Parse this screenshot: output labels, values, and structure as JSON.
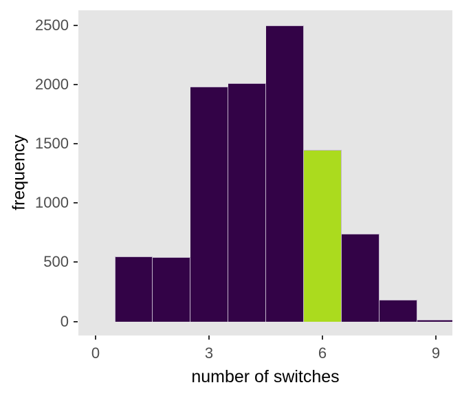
{
  "chart_data": {
    "type": "bar",
    "subtype": "histogram",
    "title": "",
    "xlabel": "number of switches",
    "ylabel": "frequency",
    "categories": [
      1,
      2,
      3,
      4,
      5,
      6,
      7,
      8,
      9
    ],
    "values": [
      550,
      540,
      1980,
      2010,
      2500,
      1450,
      740,
      185,
      15
    ],
    "highlight_category": 6,
    "bin_width": 1,
    "x_ticks": [
      0,
      3,
      6,
      9
    ],
    "y_ticks": [
      0,
      500,
      1000,
      1500,
      2000,
      2500
    ],
    "xlim": [
      -0.45,
      9.44
    ],
    "ylim": [
      -120,
      2630
    ],
    "grid": false,
    "legend": false,
    "colors": {
      "bar_fill": "#330347",
      "bar_highlight_fill": "#ABDB1E",
      "bar_stroke": "#C3B6CC",
      "panel_bg": "#E5E5E5",
      "figure_bg": "#FFFFFF",
      "tick_text": "#4D4D4D",
      "tick_mark": "#333333",
      "axis_title_text": "#000000"
    }
  }
}
